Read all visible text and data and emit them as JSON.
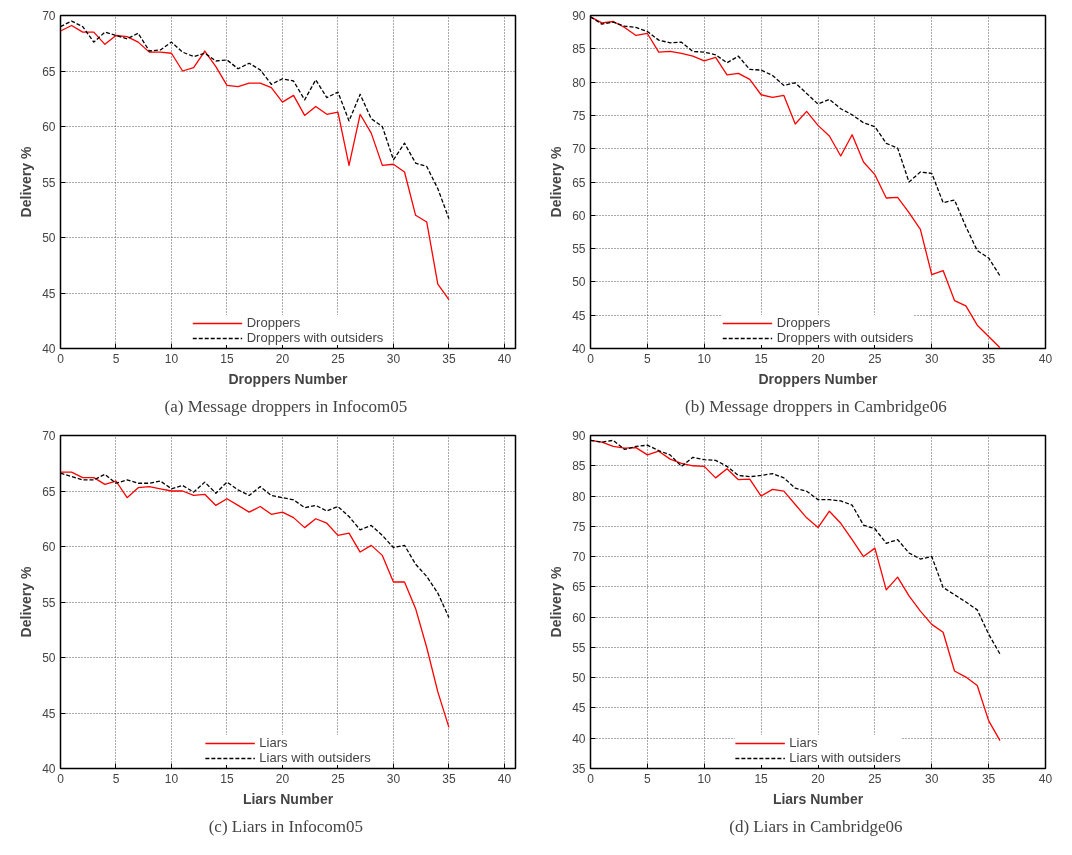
{
  "chart_data": [
    {
      "type": "line",
      "title": "(a)  Message droppers in Infocom05",
      "xlabel": "Droppers Number",
      "ylabel": "Delivery %",
      "xlim": [
        0,
        41
      ],
      "xticks": [
        0,
        5,
        10,
        15,
        20,
        25,
        30,
        35,
        40
      ],
      "ylim": [
        40,
        70
      ],
      "yticks": [
        40,
        45,
        50,
        55,
        60,
        65,
        70
      ],
      "grid": true,
      "legend": "bottom",
      "marker": "none",
      "x": [
        0,
        1,
        2,
        3,
        4,
        5,
        6,
        7,
        8,
        9,
        10,
        11,
        12,
        13,
        14,
        15,
        16,
        17,
        18,
        19,
        20,
        21,
        22,
        23,
        24,
        25,
        26,
        27,
        28,
        29,
        30,
        31,
        32,
        33,
        34,
        35
      ],
      "series": [
        {
          "name": "Droppers",
          "color": "#ff0000",
          "line_style": "solid",
          "values": [
            68.6,
            69.1,
            68.5,
            68.5,
            67.4,
            68.2,
            68.1,
            67.6,
            66.7,
            66.7,
            66.6,
            65.0,
            65.3,
            66.8,
            65.4,
            63.7,
            63.6,
            63.9,
            63.9,
            63.5,
            62.2,
            62.8,
            61.0,
            61.8,
            61.1,
            61.3,
            56.5,
            61.1,
            59.4,
            56.5,
            56.6,
            55.9,
            52.0,
            51.4,
            45.8,
            44.4
          ]
        },
        {
          "name": "Droppers with outsiders",
          "color": "#000000",
          "line_style": "dashed",
          "values": [
            69.0,
            69.5,
            69.0,
            67.6,
            68.5,
            68.2,
            67.9,
            68.4,
            66.8,
            66.9,
            67.6,
            66.7,
            66.3,
            66.6,
            65.9,
            66.0,
            65.2,
            65.7,
            65.1,
            63.8,
            64.3,
            64.1,
            62.4,
            64.2,
            62.6,
            63.1,
            60.5,
            62.9,
            60.7,
            60.0,
            57.0,
            58.5,
            56.7,
            56.4,
            54.4,
            51.7
          ]
        }
      ]
    },
    {
      "type": "line",
      "title": "(b)  Message droppers in Cambridge06",
      "xlabel": "Droppers Number",
      "ylabel": "Delivery %",
      "xlim": [
        0,
        40
      ],
      "xticks": [
        0,
        5,
        10,
        15,
        20,
        25,
        30,
        35,
        40
      ],
      "ylim": [
        40,
        90
      ],
      "yticks": [
        40,
        45,
        50,
        55,
        60,
        65,
        70,
        75,
        80,
        85,
        90
      ],
      "grid": true,
      "legend": "bottom",
      "marker": "none",
      "x": [
        0,
        1,
        2,
        3,
        4,
        5,
        6,
        7,
        8,
        9,
        10,
        11,
        12,
        13,
        14,
        15,
        16,
        17,
        18,
        19,
        20,
        21,
        22,
        23,
        24,
        25,
        26,
        27,
        28,
        29,
        30,
        31,
        32,
        33,
        34,
        35,
        36
      ],
      "series": [
        {
          "name": "Droppers",
          "color": "#ff0000",
          "line_style": "solid",
          "values": [
            89.8,
            88.9,
            89.1,
            88.2,
            87.0,
            87.3,
            84.5,
            84.6,
            84.3,
            83.9,
            83.2,
            83.7,
            81.1,
            81.3,
            80.4,
            78.1,
            77.7,
            78.0,
            73.7,
            75.6,
            73.5,
            71.9,
            68.9,
            72.1,
            68.0,
            66.1,
            62.6,
            62.7,
            60.4,
            57.9,
            51.1,
            51.7,
            47.2,
            46.4,
            43.5,
            41.8,
            40.1
          ]
        },
        {
          "name": "Droppers with outsiders",
          "color": "#000000",
          "line_style": "dashed",
          "values": [
            89.8,
            88.7,
            89.0,
            88.4,
            88.2,
            87.6,
            86.3,
            85.9,
            86.0,
            84.6,
            84.5,
            84.1,
            82.9,
            83.9,
            81.9,
            81.8,
            81.0,
            79.5,
            79.9,
            78.3,
            76.7,
            77.4,
            76.0,
            75.1,
            73.9,
            73.3,
            70.8,
            70.1,
            65.0,
            66.5,
            66.3,
            61.9,
            62.3,
            58.3,
            54.7,
            53.6,
            50.9
          ]
        }
      ]
    },
    {
      "type": "line",
      "title": "(c)  Liars in Infocom05",
      "xlabel": "Liars Number",
      "ylabel": "Delivery %",
      "xlim": [
        0,
        41
      ],
      "xticks": [
        0,
        5,
        10,
        15,
        20,
        25,
        30,
        35,
        40
      ],
      "ylim": [
        40,
        70
      ],
      "yticks": [
        40,
        45,
        50,
        55,
        60,
        65,
        70
      ],
      "grid": true,
      "legend": "bottom",
      "marker": "none",
      "x": [
        0,
        1,
        2,
        3,
        4,
        5,
        6,
        7,
        8,
        9,
        10,
        11,
        12,
        13,
        14,
        15,
        16,
        17,
        18,
        19,
        20,
        21,
        22,
        23,
        24,
        25,
        26,
        27,
        28,
        29,
        30,
        31,
        32,
        33,
        34,
        35
      ],
      "series": [
        {
          "name": "Liars",
          "color": "#ff0000",
          "line_style": "solid",
          "values": [
            66.7,
            66.7,
            66.2,
            66.2,
            65.6,
            65.9,
            64.4,
            65.3,
            65.4,
            65.2,
            65.0,
            65.0,
            64.6,
            64.7,
            63.7,
            64.3,
            63.7,
            63.1,
            63.6,
            62.9,
            63.1,
            62.6,
            61.7,
            62.5,
            62.1,
            61.0,
            61.2,
            59.5,
            60.1,
            59.2,
            56.8,
            56.8,
            54.4,
            50.9,
            46.9,
            43.7
          ]
        },
        {
          "name": "Liars with outsiders",
          "color": "#000000",
          "line_style": "dashed",
          "values": [
            66.6,
            66.3,
            66.0,
            66.0,
            66.5,
            65.7,
            66.0,
            65.7,
            65.7,
            65.9,
            65.2,
            65.5,
            64.9,
            65.8,
            64.8,
            65.8,
            65.1,
            64.6,
            65.4,
            64.6,
            64.4,
            64.2,
            63.5,
            63.7,
            63.2,
            63.6,
            62.7,
            61.5,
            61.9,
            61.0,
            59.9,
            60.1,
            58.4,
            57.3,
            55.8,
            53.6
          ]
        }
      ]
    },
    {
      "type": "line",
      "title": "(d)  Liars in Cambridge06",
      "xlabel": "Liars Number",
      "ylabel": "Delivery %",
      "xlim": [
        0,
        40
      ],
      "xticks": [
        0,
        5,
        10,
        15,
        20,
        25,
        30,
        35,
        40
      ],
      "ylim": [
        35,
        90
      ],
      "yticks": [
        35,
        40,
        45,
        50,
        55,
        60,
        65,
        70,
        75,
        80,
        85,
        90
      ],
      "grid": true,
      "legend": "bottom",
      "marker": "none",
      "x": [
        0,
        1,
        2,
        3,
        4,
        5,
        6,
        7,
        8,
        9,
        10,
        11,
        12,
        13,
        14,
        15,
        16,
        17,
        18,
        19,
        20,
        21,
        22,
        23,
        24,
        25,
        26,
        27,
        28,
        29,
        30,
        31,
        32,
        33,
        34,
        35,
        36
      ],
      "series": [
        {
          "name": "Liars",
          "color": "#ff0000",
          "line_style": "solid",
          "values": [
            89.2,
            88.9,
            88.2,
            87.9,
            88.0,
            86.8,
            87.4,
            86.1,
            85.4,
            85.0,
            84.9,
            83.0,
            84.5,
            82.7,
            82.8,
            80.0,
            81.1,
            80.8,
            78.6,
            76.4,
            74.8,
            77.5,
            75.5,
            72.8,
            70.0,
            71.4,
            64.5,
            66.6,
            63.5,
            61.0,
            58.8,
            57.5,
            51.1,
            50.1,
            48.7,
            42.9,
            39.6
          ]
        },
        {
          "name": "Liars with outsiders",
          "color": "#000000",
          "line_style": "dashed",
          "values": [
            89.2,
            88.9,
            89.2,
            87.7,
            88.2,
            88.4,
            87.5,
            86.8,
            84.9,
            86.4,
            86.0,
            85.9,
            84.9,
            83.4,
            83.2,
            83.4,
            83.7,
            83.0,
            81.3,
            80.8,
            79.4,
            79.4,
            79.2,
            78.5,
            75.2,
            74.6,
            72.2,
            72.8,
            70.6,
            69.6,
            70.0,
            64.9,
            63.7,
            62.5,
            61.2,
            57.2,
            53.9
          ]
        }
      ]
    }
  ]
}
